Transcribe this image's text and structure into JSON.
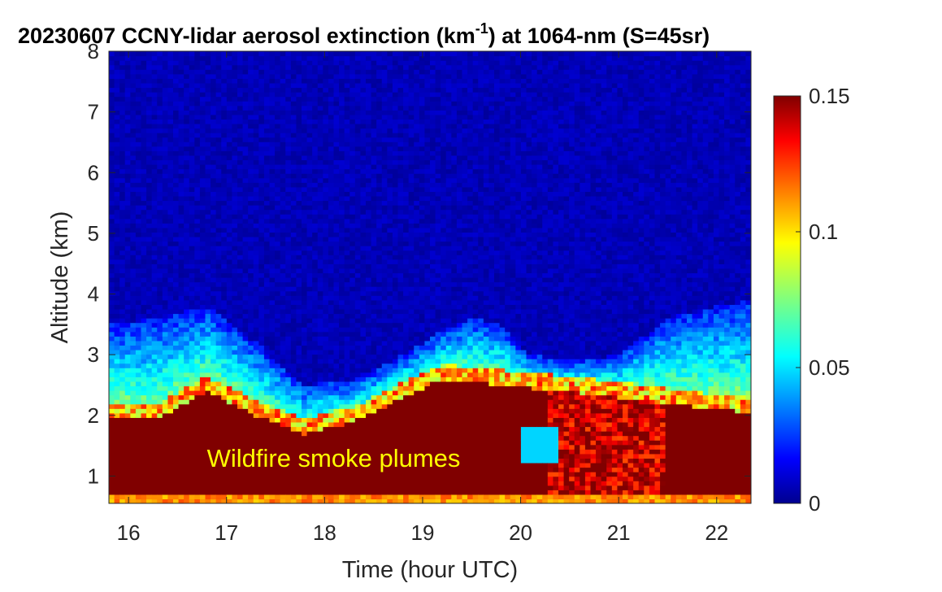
{
  "chart_data": {
    "type": "heatmap",
    "title": {
      "prefix": "20230607 CCNY-lidar aerosol extinction (km",
      "superscript": "-1",
      "suffix": ") at 1064-nm (S=45sr)"
    },
    "xlabel": "Time (hour UTC)",
    "ylabel": "Altitude (km)",
    "xlim": [
      15.8,
      22.35
    ],
    "ylim": [
      0.55,
      8
    ],
    "x_ticks": [
      16,
      17,
      18,
      19,
      20,
      21,
      22
    ],
    "y_ticks": [
      1,
      2,
      3,
      4,
      5,
      6,
      7,
      8
    ],
    "x_tick_labels": [
      "16",
      "17",
      "18",
      "19",
      "20",
      "21",
      "22"
    ],
    "y_tick_labels": [
      "1",
      "2",
      "3",
      "4",
      "5",
      "6",
      "7",
      "8"
    ],
    "colorbar": {
      "range": [
        0,
        0.15
      ],
      "ticks": [
        0,
        0.05,
        0.1,
        0.15
      ],
      "tick_labels": [
        "0",
        "0.05",
        "0.1",
        "0.15"
      ],
      "colormap": "jet"
    },
    "layers": {
      "x": [
        15.8,
        16.3,
        16.8,
        17.3,
        17.8,
        18.3,
        18.8,
        19.2,
        19.5,
        19.8,
        20.1,
        20.5,
        21.0,
        21.5,
        22.0,
        22.35
      ],
      "smoke_top_km": [
        1.95,
        1.95,
        2.4,
        2.0,
        1.7,
        1.9,
        2.3,
        2.6,
        2.55,
        2.5,
        2.45,
        2.4,
        2.3,
        2.2,
        2.1,
        2.05
      ],
      "aerosol_top_km": [
        3.5,
        3.6,
        3.8,
        3.2,
        2.5,
        2.6,
        3.0,
        3.4,
        3.6,
        3.5,
        3.0,
        2.9,
        3.0,
        3.6,
        3.8,
        3.9
      ]
    },
    "annotation": {
      "text": "Wildfire smoke plumes",
      "x": 16.8,
      "y": 1.15,
      "color": "#ffff00"
    }
  }
}
